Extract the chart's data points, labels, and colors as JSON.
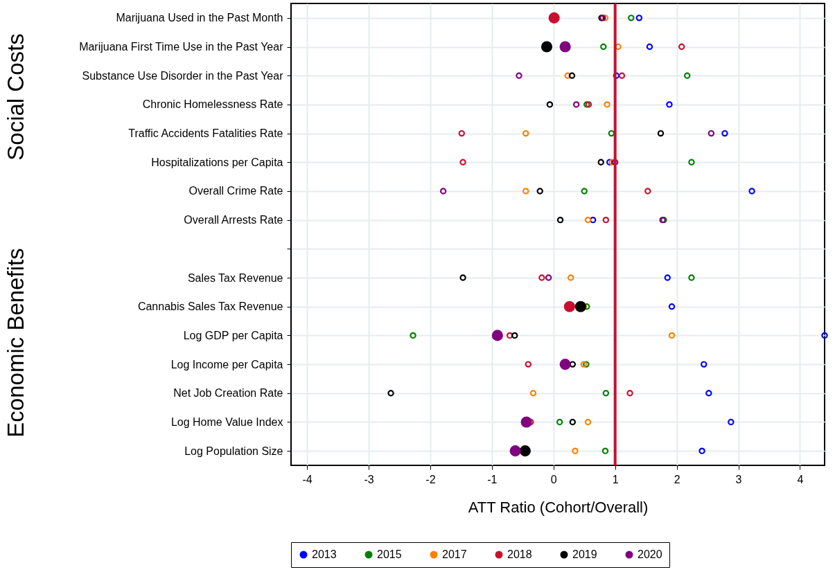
{
  "chart_data": {
    "type": "bubble",
    "orientation": "horizontal",
    "xlabel": "ATT Ratio (Cohort/Overall)",
    "categories": [
      "Marijuana Used in the Past Month",
      "Marijuana First Time Use in the Past Year",
      "Substance Use Disorder in the Past Year",
      "Chronic Homelessness Rate",
      "Traffic Accidents Fatalities Rate",
      "Hospitalizations per Capita",
      "Overall Crime Rate",
      "Overall Arrests Rate",
      null,
      "Sales Tax Revenue",
      "Cannabis Sales Tax Revenue",
      "Log GDP per Capita",
      "Log Income per Capita",
      "Net Job Creation Rate",
      "Log Home Value Index",
      "Log Population Size"
    ],
    "series": [
      {
        "name": "2013",
        "color": "#0000ff",
        "values": [
          1.39,
          1.56,
          1.02,
          1.88,
          2.78,
          0.91,
          3.22,
          0.64,
          null,
          1.85,
          1.92,
          4.4,
          2.44,
          2.52,
          2.88,
          2.41
        ],
        "sizes": [
          0.2,
          0.2,
          0.2,
          0.2,
          0.2,
          0.2,
          0.2,
          0.2,
          null,
          0.2,
          0.2,
          0.2,
          0.2,
          0.2,
          0.2,
          0.2
        ]
      },
      {
        "name": "2015",
        "color": "#008000",
        "values": [
          1.26,
          0.81,
          2.17,
          0.54,
          0.94,
          2.24,
          0.5,
          1.79,
          null,
          2.24,
          0.54,
          -2.28,
          0.53,
          0.85,
          0.1,
          0.84
        ],
        "sizes": [
          0.2,
          0.2,
          0.2,
          0.2,
          0.2,
          0.2,
          0.2,
          0.2,
          null,
          0.2,
          0.2,
          0.2,
          0.2,
          0.2,
          0.2,
          0.2
        ]
      },
      {
        "name": "2017",
        "color": "#ff8000",
        "values": [
          0.84,
          1.05,
          0.23,
          0.87,
          -0.45,
          0.95,
          -0.45,
          0.56,
          null,
          0.28,
          0.49,
          1.92,
          0.49,
          -0.33,
          0.56,
          0.35
        ],
        "sizes": [
          0.2,
          0.2,
          0.2,
          0.2,
          0.2,
          0.2,
          0.2,
          0.2,
          null,
          0.2,
          0.2,
          0.2,
          0.2,
          0.2,
          0.2,
          0.2
        ]
      },
      {
        "name": "2018",
        "color": "#c8102e",
        "values": [
          0.01,
          2.08,
          1.11,
          0.57,
          -1.49,
          -1.47,
          1.53,
          0.85,
          null,
          -0.19,
          0.26,
          -0.71,
          -0.41,
          1.24,
          -0.37,
          null
        ],
        "sizes": [
          1,
          0.2,
          0.2,
          0.2,
          0.2,
          0.2,
          0.2,
          0.2,
          null,
          0.2,
          1,
          0.2,
          0.2,
          0.2,
          0.2,
          null
        ]
      },
      {
        "name": "2019",
        "color": "#000000",
        "values": [
          0.78,
          -0.11,
          0.3,
          -0.06,
          1.74,
          0.77,
          -0.22,
          0.11,
          null,
          -1.47,
          0.44,
          -0.63,
          0.31,
          -2.64,
          0.31,
          -0.46
        ],
        "sizes": [
          0.2,
          1,
          0.2,
          0.2,
          0.2,
          0.2,
          0.2,
          0.2,
          null,
          0.2,
          1,
          0.2,
          0.2,
          0.2,
          0.2,
          1
        ]
      },
      {
        "name": "2020",
        "color": "#800080",
        "values": [
          0.8,
          0.19,
          -0.56,
          0.37,
          2.56,
          1.0,
          -1.79,
          1.77,
          null,
          -0.08,
          null,
          -0.91,
          0.19,
          null,
          -0.44,
          -0.62
        ],
        "sizes": [
          0.2,
          1,
          0.2,
          0.2,
          0.2,
          0.2,
          0.2,
          0.2,
          null,
          0.2,
          null,
          1,
          1,
          null,
          1,
          1
        ]
      }
    ],
    "xlim": [
      -4.26,
      4.4
    ],
    "xticks": [
      -4,
      -3,
      -2,
      -1,
      0,
      1,
      2,
      3,
      4
    ],
    "ref_lines": [
      {
        "axis": "x",
        "value": 1,
        "color": "#c8102e"
      }
    ],
    "annotations": [
      "Social Costs",
      "Economic Benefits"
    ],
    "grid": true,
    "legend": "bottom"
  }
}
